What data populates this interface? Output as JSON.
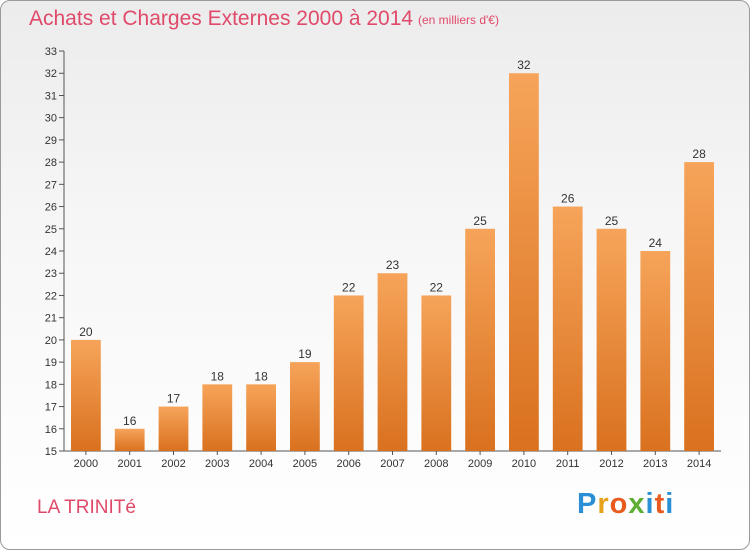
{
  "header": {
    "title": "Achats et Charges Externes 2000 à 2014",
    "subtitle": "(en milliers d'€)"
  },
  "footer": {
    "place": "LA TRINITé",
    "logo_letters": [
      "P",
      "r",
      "o",
      "x",
      "i",
      "t",
      "i"
    ],
    "logo_colors": [
      "#2b8fd6",
      "#e6a21a",
      "#e85a1e",
      "#5cae34",
      "#2b8fd6",
      "#e85a1e",
      "#2b8fd6"
    ]
  },
  "colors": {
    "bar_top": "#f6a45a",
    "bar_bottom": "#d9711f",
    "title": "#e04a6a"
  },
  "chart_data": {
    "type": "bar",
    "categories": [
      "2000",
      "2001",
      "2002",
      "2003",
      "2004",
      "2005",
      "2006",
      "2007",
      "2008",
      "2009",
      "2010",
      "2011",
      "2012",
      "2013",
      "2014"
    ],
    "values": [
      20,
      16,
      17,
      18,
      18,
      19,
      22,
      23,
      22,
      25,
      32,
      26,
      25,
      24,
      28
    ],
    "ylim": [
      15,
      33
    ],
    "yticks": [
      15,
      16,
      17,
      18,
      19,
      20,
      21,
      22,
      23,
      24,
      25,
      26,
      27,
      28,
      29,
      30,
      31,
      32,
      33
    ],
    "grid": false
  }
}
